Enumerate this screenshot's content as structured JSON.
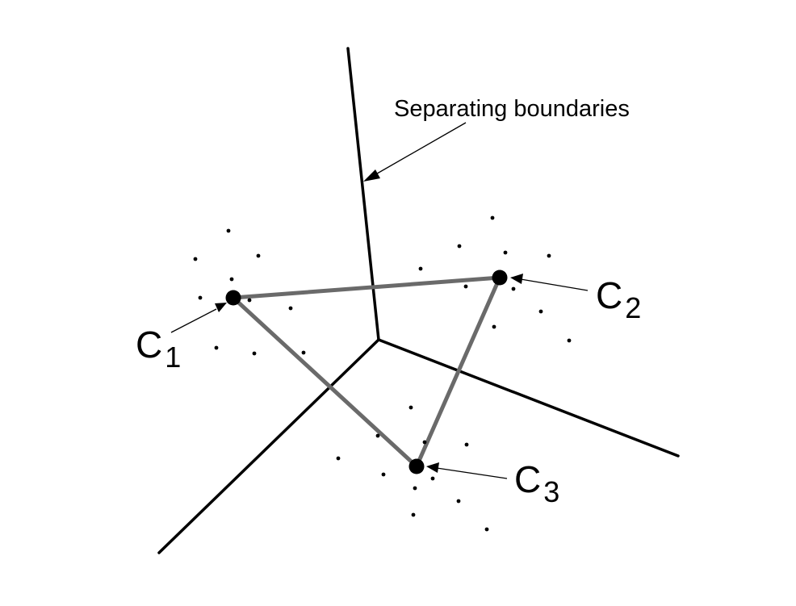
{
  "annotation": {
    "boundary_label": "Separating boundaries"
  },
  "centroids": [
    {
      "id": "c1",
      "letter": "C",
      "subscript": "1"
    },
    {
      "id": "c2",
      "letter": "C",
      "subscript": "2"
    },
    {
      "id": "c3",
      "letter": "C",
      "subscript": "3"
    }
  ],
  "colors": {
    "boundary": "#000000",
    "connector": "#6a6a6a",
    "point": "#000000",
    "background": "#ffffff"
  }
}
